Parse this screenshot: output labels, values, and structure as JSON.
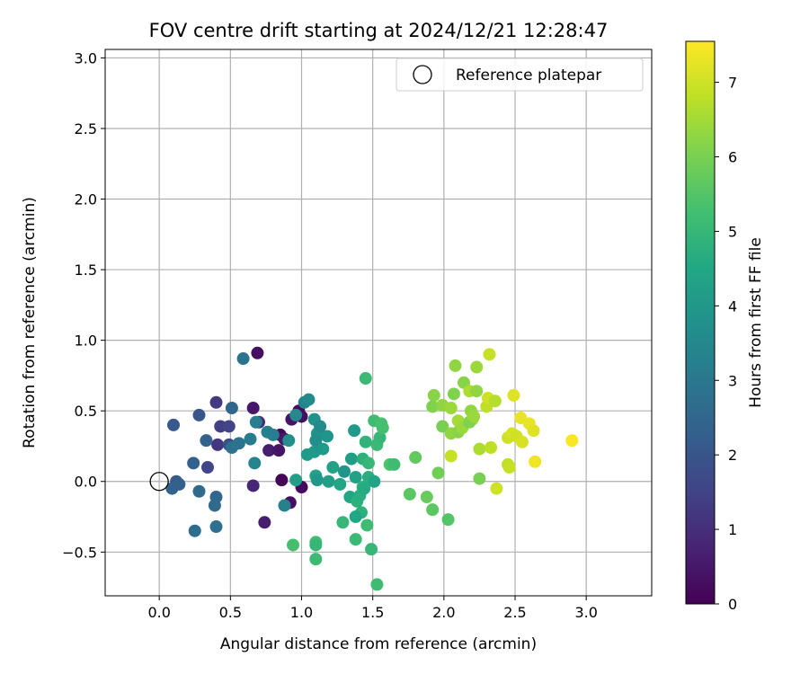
{
  "chart_data": {
    "type": "scatter",
    "title": "FOV centre drift starting at 2024/12/21 12:28:47",
    "xlabel": "Angular distance from reference (arcmin)",
    "ylabel": "Rotation from reference (arcmin)",
    "xlim": [
      -0.38,
      3.46
    ],
    "ylim": [
      -0.81,
      3.06
    ],
    "x_ticks": [
      0.0,
      0.5,
      1.0,
      1.5,
      2.0,
      2.5,
      3.0
    ],
    "x_tick_labels": [
      "0.0",
      "0.5",
      "1.0",
      "1.5",
      "2.0",
      "2.5",
      "3.0"
    ],
    "y_ticks": [
      -0.5,
      0.0,
      0.5,
      1.0,
      1.5,
      2.0,
      2.5,
      3.0
    ],
    "y_tick_labels": [
      "−0.5",
      "0.0",
      "0.5",
      "1.0",
      "1.5",
      "2.0",
      "2.5",
      "3.0"
    ],
    "grid": true,
    "colormap": "viridis",
    "colorbar": {
      "label": "Hours from first FF file",
      "range": [
        0,
        7.55
      ],
      "ticks": [
        0,
        1,
        2,
        3,
        4,
        5,
        6,
        7
      ],
      "tick_labels": [
        "0",
        "1",
        "2",
        "3",
        "4",
        "5",
        "6",
        "7"
      ]
    },
    "legend": {
      "position": "top-right",
      "label": "Reference platepar"
    },
    "reference_point": {
      "x": 0.0,
      "y": 0.0
    },
    "points": [
      {
        "x": 0.69,
        "y": 0.91,
        "h": 0.3
      },
      {
        "x": 0.66,
        "y": 0.52,
        "h": 0.5
      },
      {
        "x": 0.93,
        "y": 0.44,
        "h": 0.4
      },
      {
        "x": 0.98,
        "y": 0.5,
        "h": 0.2
      },
      {
        "x": 1.0,
        "y": 0.46,
        "h": 0.3
      },
      {
        "x": 0.85,
        "y": 0.33,
        "h": 0.2
      },
      {
        "x": 0.88,
        "y": 0.3,
        "h": 0.5
      },
      {
        "x": 0.77,
        "y": 0.22,
        "h": 0.6
      },
      {
        "x": 0.84,
        "y": 0.22,
        "h": 0.4
      },
      {
        "x": 0.86,
        "y": 0.01,
        "h": 0.1
      },
      {
        "x": 0.92,
        "y": -0.15,
        "h": 0.3
      },
      {
        "x": 1.0,
        "y": -0.04,
        "h": 0.2
      },
      {
        "x": 0.66,
        "y": -0.03,
        "h": 0.8
      },
      {
        "x": 0.74,
        "y": -0.29,
        "h": 0.6
      },
      {
        "x": 0.7,
        "y": 0.42,
        "h": 0.9
      },
      {
        "x": 0.41,
        "y": 0.26,
        "h": 1.2
      },
      {
        "x": 0.43,
        "y": 0.39,
        "h": 1.4
      },
      {
        "x": 0.4,
        "y": 0.56,
        "h": 1.3
      },
      {
        "x": 0.49,
        "y": 0.39,
        "h": 1.5
      },
      {
        "x": 0.49,
        "y": 0.26,
        "h": 1.8
      },
      {
        "x": 0.34,
        "y": 0.1,
        "h": 1.6
      },
      {
        "x": 0.28,
        "y": 0.47,
        "h": 2.0
      },
      {
        "x": 0.1,
        "y": 0.4,
        "h": 2.1
      },
      {
        "x": 0.24,
        "y": 0.13,
        "h": 2.3
      },
      {
        "x": 0.33,
        "y": 0.29,
        "h": 2.4
      },
      {
        "x": 0.12,
        "y": 0.0,
        "h": 2.1
      },
      {
        "x": 0.09,
        "y": -0.05,
        "h": 2.4
      },
      {
        "x": 0.14,
        "y": -0.02,
        "h": 2.3
      },
      {
        "x": 0.28,
        "y": -0.07,
        "h": 2.6
      },
      {
        "x": 0.4,
        "y": -0.11,
        "h": 2.5
      },
      {
        "x": 0.39,
        "y": -0.17,
        "h": 2.6
      },
      {
        "x": 0.25,
        "y": -0.35,
        "h": 2.7
      },
      {
        "x": 0.4,
        "y": -0.32,
        "h": 2.8
      },
      {
        "x": 0.51,
        "y": 0.52,
        "h": 2.5
      },
      {
        "x": 0.51,
        "y": 0.24,
        "h": 2.8
      },
      {
        "x": 0.56,
        "y": 0.27,
        "h": 2.9
      },
      {
        "x": 0.59,
        "y": 0.87,
        "h": 2.9
      },
      {
        "x": 0.64,
        "y": 0.3,
        "h": 3.1
      },
      {
        "x": 0.68,
        "y": 0.42,
        "h": 3.2
      },
      {
        "x": 0.67,
        "y": 0.13,
        "h": 3.4
      },
      {
        "x": 0.76,
        "y": 0.35,
        "h": 3.3
      },
      {
        "x": 0.8,
        "y": 0.33,
        "h": 3.2
      },
      {
        "x": 0.88,
        "y": -0.17,
        "h": 3.3
      },
      {
        "x": 0.91,
        "y": 0.29,
        "h": 3.7
      },
      {
        "x": 0.96,
        "y": 0.47,
        "h": 3.5
      },
      {
        "x": 1.02,
        "y": 0.56,
        "h": 3.4
      },
      {
        "x": 1.05,
        "y": 0.58,
        "h": 3.6
      },
      {
        "x": 1.09,
        "y": 0.44,
        "h": 3.8
      },
      {
        "x": 1.11,
        "y": 0.34,
        "h": 3.9
      },
      {
        "x": 1.1,
        "y": 0.29,
        "h": 3.7
      },
      {
        "x": 1.13,
        "y": 0.39,
        "h": 3.6
      },
      {
        "x": 1.18,
        "y": 0.32,
        "h": 3.9
      },
      {
        "x": 1.15,
        "y": 0.23,
        "h": 4.1
      },
      {
        "x": 1.09,
        "y": 0.21,
        "h": 4.0
      },
      {
        "x": 1.04,
        "y": 0.19,
        "h": 4.1
      },
      {
        "x": 0.96,
        "y": 0.01,
        "h": 4.2
      },
      {
        "x": 1.1,
        "y": 0.04,
        "h": 4.3
      },
      {
        "x": 1.11,
        "y": 0.01,
        "h": 4.0
      },
      {
        "x": 1.19,
        "y": 0.0,
        "h": 4.2
      },
      {
        "x": 1.22,
        "y": 0.1,
        "h": 4.3
      },
      {
        "x": 1.27,
        "y": -0.02,
        "h": 4.4
      },
      {
        "x": 1.3,
        "y": 0.07,
        "h": 3.9
      },
      {
        "x": 1.35,
        "y": 0.16,
        "h": 4.2
      },
      {
        "x": 1.38,
        "y": 0.03,
        "h": 4.3
      },
      {
        "x": 1.37,
        "y": 0.36,
        "h": 4.1
      },
      {
        "x": 1.34,
        "y": -0.11,
        "h": 4.5
      },
      {
        "x": 1.39,
        "y": -0.14,
        "h": 4.8
      },
      {
        "x": 1.41,
        "y": -0.1,
        "h": 4.7
      },
      {
        "x": 1.43,
        "y": -0.04,
        "h": 4.9
      },
      {
        "x": 1.42,
        "y": -0.22,
        "h": 4.8
      },
      {
        "x": 1.38,
        "y": -0.25,
        "h": 4.5
      },
      {
        "x": 1.44,
        "y": -0.05,
        "h": 4.6
      },
      {
        "x": 1.47,
        "y": 0.03,
        "h": 4.7
      },
      {
        "x": 1.51,
        "y": 0.0,
        "h": 4.4
      },
      {
        "x": 1.43,
        "y": 0.16,
        "h": 4.8
      },
      {
        "x": 1.47,
        "y": 0.13,
        "h": 5.0
      },
      {
        "x": 1.45,
        "y": 0.28,
        "h": 4.9
      },
      {
        "x": 1.53,
        "y": 0.26,
        "h": 5.1
      },
      {
        "x": 1.55,
        "y": 0.31,
        "h": 5.0
      },
      {
        "x": 1.51,
        "y": 0.43,
        "h": 5.2
      },
      {
        "x": 1.56,
        "y": 0.41,
        "h": 5.3
      },
      {
        "x": 1.57,
        "y": 0.38,
        "h": 5.3
      },
      {
        "x": 1.45,
        "y": 0.73,
        "h": 5.1
      },
      {
        "x": 1.62,
        "y": 0.12,
        "h": 5.4
      },
      {
        "x": 1.65,
        "y": 0.12,
        "h": 5.2
      },
      {
        "x": 1.29,
        "y": -0.29,
        "h": 5.0
      },
      {
        "x": 1.38,
        "y": -0.41,
        "h": 5.1
      },
      {
        "x": 1.46,
        "y": -0.31,
        "h": 5.2
      },
      {
        "x": 1.49,
        "y": -0.48,
        "h": 5.0
      },
      {
        "x": 1.53,
        "y": -0.73,
        "h": 5.2
      },
      {
        "x": 1.1,
        "y": -0.43,
        "h": 5.3
      },
      {
        "x": 1.1,
        "y": -0.45,
        "h": 5.0
      },
      {
        "x": 1.1,
        "y": -0.55,
        "h": 5.1
      },
      {
        "x": 0.94,
        "y": -0.45,
        "h": 5.3
      },
      {
        "x": 1.76,
        "y": -0.09,
        "h": 5.6
      },
      {
        "x": 1.8,
        "y": 0.17,
        "h": 5.7
      },
      {
        "x": 1.88,
        "y": -0.11,
        "h": 5.8
      },
      {
        "x": 1.92,
        "y": -0.2,
        "h": 5.6
      },
      {
        "x": 1.96,
        "y": 0.06,
        "h": 5.9
      },
      {
        "x": 2.03,
        "y": -0.27,
        "h": 5.5
      },
      {
        "x": 1.92,
        "y": 0.53,
        "h": 6.1
      },
      {
        "x": 1.93,
        "y": 0.61,
        "h": 6.2
      },
      {
        "x": 1.99,
        "y": 0.39,
        "h": 6.0
      },
      {
        "x": 1.99,
        "y": 0.54,
        "h": 6.3
      },
      {
        "x": 2.05,
        "y": 0.52,
        "h": 6.4
      },
      {
        "x": 2.05,
        "y": 0.34,
        "h": 6.3
      },
      {
        "x": 2.07,
        "y": 0.62,
        "h": 6.1
      },
      {
        "x": 2.08,
        "y": 0.82,
        "h": 6.3
      },
      {
        "x": 2.1,
        "y": 0.43,
        "h": 6.5
      },
      {
        "x": 2.1,
        "y": 0.35,
        "h": 6.2
      },
      {
        "x": 2.13,
        "y": 0.38,
        "h": 6.4
      },
      {
        "x": 2.14,
        "y": 0.7,
        "h": 6.2
      },
      {
        "x": 2.18,
        "y": 0.64,
        "h": 6.6
      },
      {
        "x": 2.19,
        "y": 0.5,
        "h": 6.3
      },
      {
        "x": 2.2,
        "y": 0.44,
        "h": 6.5
      },
      {
        "x": 2.18,
        "y": 0.42,
        "h": 6.1
      },
      {
        "x": 2.21,
        "y": 0.46,
        "h": 6.4
      },
      {
        "x": 2.23,
        "y": 0.64,
        "h": 6.3
      },
      {
        "x": 2.23,
        "y": 0.81,
        "h": 6.4
      },
      {
        "x": 2.25,
        "y": 0.23,
        "h": 6.6
      },
      {
        "x": 2.25,
        "y": 0.02,
        "h": 6.0
      },
      {
        "x": 2.3,
        "y": 0.53,
        "h": 6.8
      },
      {
        "x": 2.31,
        "y": 0.59,
        "h": 7.0
      },
      {
        "x": 2.32,
        "y": 0.9,
        "h": 6.9
      },
      {
        "x": 2.33,
        "y": 0.24,
        "h": 6.8
      },
      {
        "x": 2.36,
        "y": 0.57,
        "h": 6.7
      },
      {
        "x": 2.37,
        "y": -0.05,
        "h": 7.0
      },
      {
        "x": 2.05,
        "y": 0.18,
        "h": 6.9
      },
      {
        "x": 2.45,
        "y": 0.31,
        "h": 7.0
      },
      {
        "x": 2.45,
        "y": 0.12,
        "h": 6.8
      },
      {
        "x": 2.46,
        "y": 0.1,
        "h": 6.9
      },
      {
        "x": 2.48,
        "y": 0.34,
        "h": 7.1
      },
      {
        "x": 2.49,
        "y": 0.61,
        "h": 7.2
      },
      {
        "x": 2.51,
        "y": 0.32,
        "h": 7.0
      },
      {
        "x": 2.54,
        "y": 0.45,
        "h": 7.3
      },
      {
        "x": 2.55,
        "y": 0.28,
        "h": 7.1
      },
      {
        "x": 2.6,
        "y": 0.41,
        "h": 7.3
      },
      {
        "x": 2.63,
        "y": 0.36,
        "h": 7.2
      },
      {
        "x": 2.64,
        "y": 0.14,
        "h": 7.4
      },
      {
        "x": 2.9,
        "y": 0.29,
        "h": 7.5
      }
    ]
  }
}
